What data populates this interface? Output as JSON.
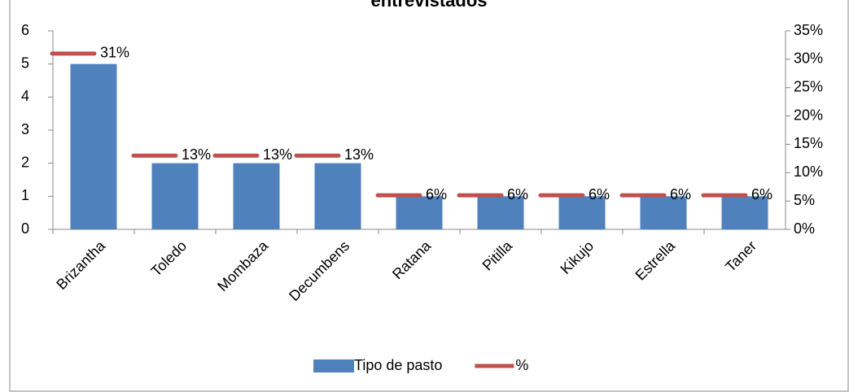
{
  "chart_data": {
    "type": "bar",
    "title": "entrevistados",
    "categories": [
      "Brizantha",
      "Toledo",
      "Mombaza",
      "Decumbens",
      "Ratana",
      "Pitilla",
      "Kikujo",
      "Estrella",
      "Taner"
    ],
    "series": [
      {
        "name": "Tipo de pasto",
        "color": "#4f81bd",
        "values": [
          5,
          2,
          2,
          2,
          1,
          1,
          1,
          1,
          1
        ]
      },
      {
        "name": "%",
        "color": "#c0504d",
        "axis": "y2",
        "values": [
          31,
          13,
          13,
          13,
          6,
          6,
          6,
          6,
          6
        ],
        "value_labels": [
          "31%",
          "13%",
          "13%",
          "13%",
          "6%",
          "6%",
          "6%",
          "6%",
          "6%"
        ]
      }
    ],
    "ylim": [
      0,
      6
    ],
    "yticks": [
      0,
      1,
      2,
      3,
      4,
      5,
      6
    ],
    "y2lim": [
      0,
      35
    ],
    "y2ticks": [
      {
        "value": 0,
        "label": "0%"
      },
      {
        "value": 5,
        "label": "5%"
      },
      {
        "value": 10,
        "label": "10%"
      },
      {
        "value": 15,
        "label": "15%"
      },
      {
        "value": 20,
        "label": "20%"
      },
      {
        "value": 25,
        "label": "25%"
      },
      {
        "value": 30,
        "label": "30%"
      },
      {
        "value": 35,
        "label": "35%"
      }
    ],
    "grid": false,
    "legend": "bottom"
  }
}
